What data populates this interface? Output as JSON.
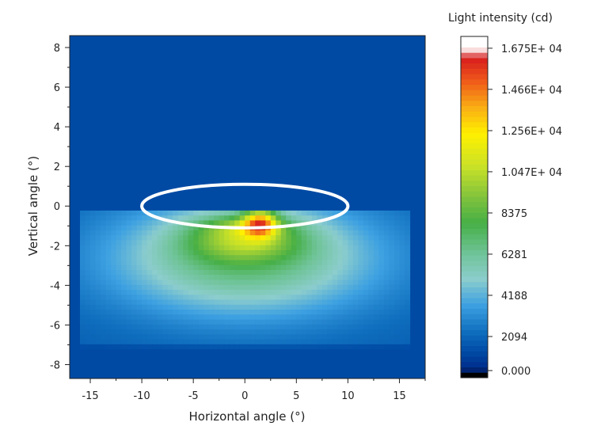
{
  "chart_data": {
    "type": "heatmap",
    "xlabel": "Horizontal angle (°)",
    "ylabel": "Vertical angle (°)",
    "xlim": [
      -17,
      17.5
    ],
    "ylim": [
      -8.7,
      8.6
    ],
    "x_ticks": [
      -15,
      -10,
      -5,
      0,
      5,
      10,
      15
    ],
    "x_tick_labels": [
      "-15",
      "-10",
      "-5",
      "0",
      "5",
      "10",
      "15"
    ],
    "y_ticks": [
      -8,
      -6,
      -4,
      -2,
      0,
      2,
      4,
      6,
      8
    ],
    "y_tick_labels": [
      "-8",
      "-6",
      "-4",
      "-2",
      "0",
      "2",
      "4",
      "6",
      "8"
    ],
    "colorbar": {
      "title": "Light intensity (cd)",
      "min": 0,
      "max": 16750,
      "ticks": [
        0,
        2094,
        4188,
        6281,
        8375,
        10470,
        12560,
        14660,
        16750
      ],
      "tick_labels": [
        "0.000",
        "2094",
        "4188",
        "6281",
        "8375",
        "1.047E+ 04",
        "1.256E+ 04",
        "1.466E+ 04",
        "1.675E+ 04"
      ]
    },
    "background_value": 1300,
    "measured_region": {
      "x": [
        -16,
        16
      ],
      "y": [
        -7.2,
        -0.1
      ]
    },
    "hotspot": {
      "x": 1.5,
      "y": -0.8,
      "peak_value": 15800
    },
    "annotation": {
      "shape": "ellipse",
      "center": [
        0,
        0
      ],
      "x_radius": 10,
      "y_radius": 1.1,
      "color": "#ffffff"
    }
  }
}
